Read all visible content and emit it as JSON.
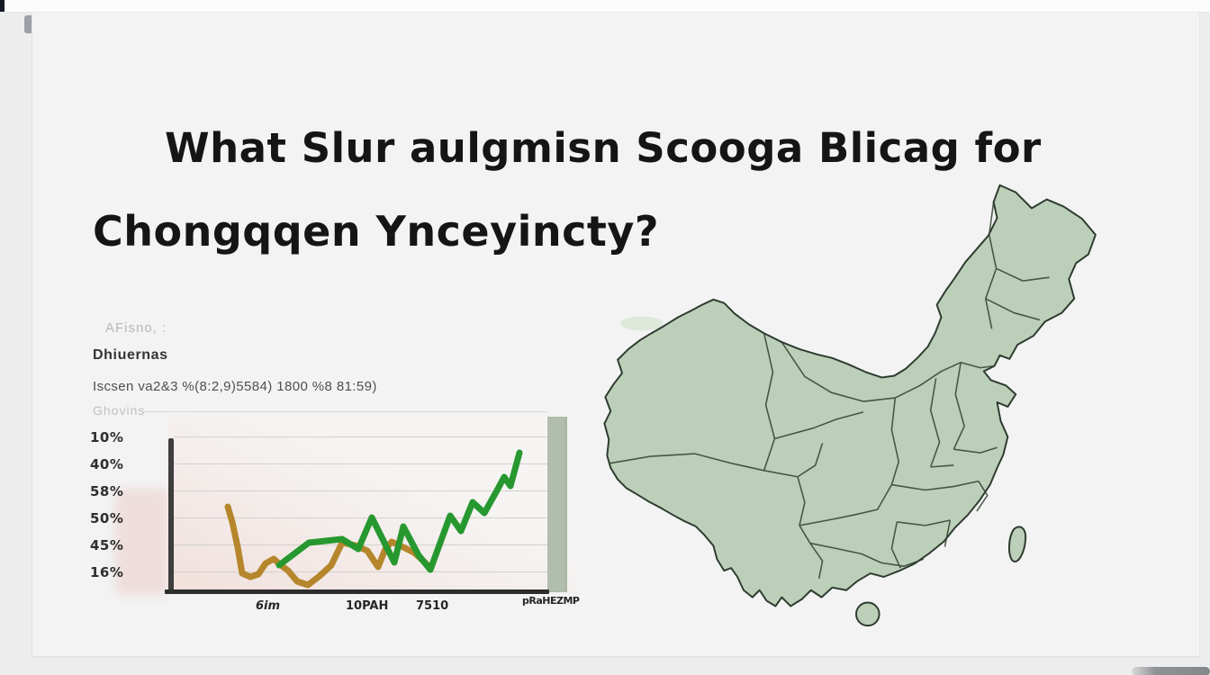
{
  "title": {
    "line1": "What Slur aulgmisn Scooga Blicag for",
    "line2": "Chongqqen Ynceyincty?"
  },
  "chart_panel": {
    "caption_top": "AFisno, :",
    "caption_title": "Dhiuernas",
    "caption_sub": "Iscsen va2&3 %(8:2,9)5584) 1800 %8 81:59)",
    "caption_axis": "Ghovins"
  },
  "chart_data": {
    "type": "line",
    "title": "Dhiuernas",
    "subtitle": "Iscsen va2&3 %(8:2,9)5584) 1800 %8 81:59)",
    "grid": true,
    "legend": "none",
    "y_ticks": [
      "10%",
      "40%",
      "58%",
      "50%",
      "45%",
      "16%"
    ],
    "x_ticks": [
      "6im",
      "10PAH",
      "7510",
      "pRaHEZMP"
    ],
    "series": [
      {
        "name": "tan-series",
        "color": "#b5862b",
        "points": [
          [
            67,
            101
          ],
          [
            72,
            118
          ],
          [
            78,
            146
          ],
          [
            83,
            175
          ],
          [
            92,
            179
          ],
          [
            101,
            176
          ],
          [
            109,
            164
          ],
          [
            118,
            159
          ],
          [
            126,
            166
          ],
          [
            134,
            172
          ],
          [
            144,
            184
          ],
          [
            156,
            188
          ],
          [
            169,
            178
          ],
          [
            182,
            166
          ],
          [
            194,
            141
          ],
          [
            209,
            144
          ],
          [
            222,
            150
          ],
          [
            234,
            168
          ],
          [
            242,
            148
          ],
          [
            249,
            140
          ],
          [
            262,
            146
          ],
          [
            274,
            152
          ],
          [
            284,
            161
          ],
          [
            291,
            168
          ]
        ]
      },
      {
        "name": "green-series",
        "color": "#27982f",
        "points": [
          [
            124,
            166
          ],
          [
            157,
            141
          ],
          [
            194,
            137
          ],
          [
            212,
            148
          ],
          [
            227,
            113
          ],
          [
            252,
            163
          ],
          [
            262,
            123
          ],
          [
            279,
            155
          ],
          [
            292,
            171
          ],
          [
            314,
            111
          ],
          [
            326,
            128
          ],
          [
            339,
            96
          ],
          [
            352,
            108
          ],
          [
            366,
            83
          ],
          [
            374,
            68
          ],
          [
            381,
            78
          ],
          [
            391,
            41
          ]
        ]
      }
    ]
  },
  "map": {
    "name": "china-provinces",
    "fill": "#bccfb8",
    "stroke": "#2d3b2f"
  },
  "colors": {
    "page_bg": "#ededee",
    "card_bg": "#f3f3f4",
    "accent_green": "#27982f",
    "accent_tan": "#b5862b",
    "plot_band": "#b1beae",
    "axis_dark": "#3e3e3e"
  }
}
